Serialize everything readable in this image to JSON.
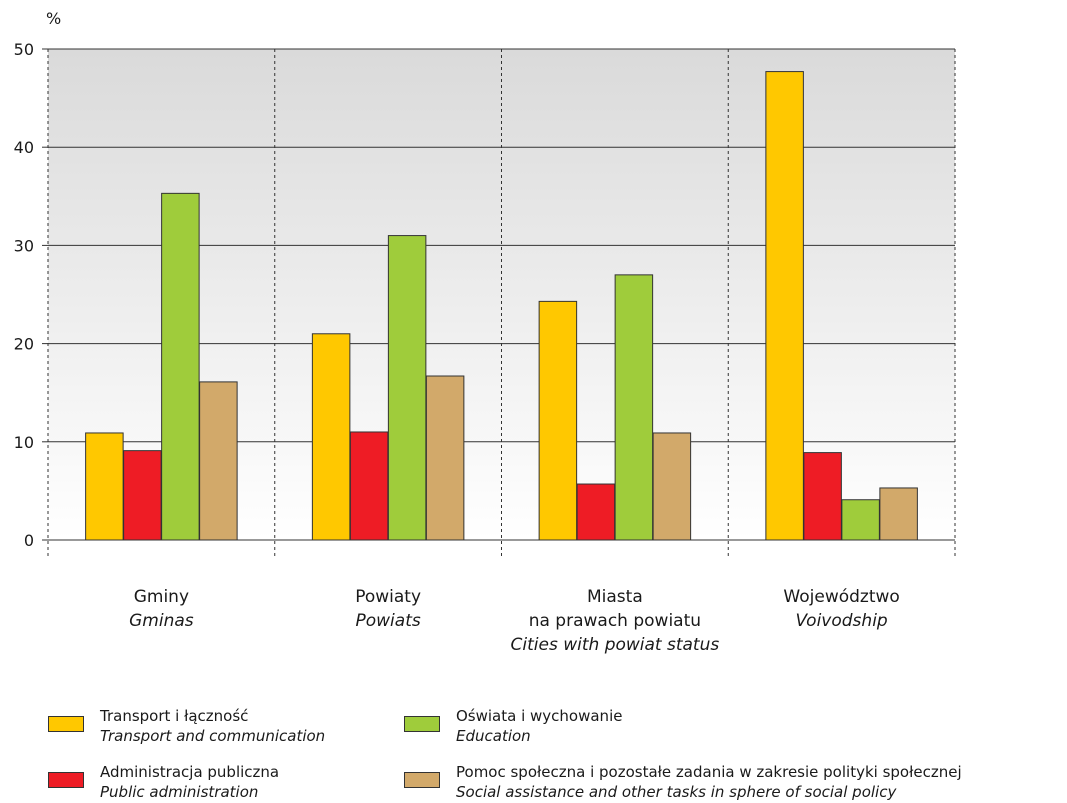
{
  "chart_data": {
    "type": "bar",
    "ylabel": "%",
    "ylim": [
      0,
      50
    ],
    "yticks": [
      0,
      10,
      20,
      30,
      40,
      50
    ],
    "grid": true,
    "legend_position": "bottom",
    "categories": [
      {
        "lines": [
          "Gminy"
        ],
        "italic": [
          "Gminas"
        ]
      },
      {
        "lines": [
          "Powiaty"
        ],
        "italic": [
          "Powiats"
        ]
      },
      {
        "lines": [
          "Miasta",
          "na prawach powiatu"
        ],
        "italic": [
          "Cities with powiat status"
        ]
      },
      {
        "lines": [
          "Województwo"
        ],
        "italic": [
          "Voivodship"
        ]
      }
    ],
    "series": [
      {
        "name": "Transport i łączność",
        "name_en": "Transport and communication",
        "color": "#ffc800",
        "values": [
          10.9,
          21.0,
          24.3,
          47.7
        ]
      },
      {
        "name": "Administracja publiczna",
        "name_en": "Public administration",
        "color": "#ee1c25",
        "values": [
          9.1,
          11.0,
          5.7,
          8.9
        ]
      },
      {
        "name": "Oświata i wychowanie",
        "name_en": "Education",
        "color": "#9fcc3b",
        "values": [
          35.3,
          31.0,
          27.0,
          4.1
        ]
      },
      {
        "name": "Pomoc społeczna i pozostałe zadania w zakresie polityki społecznej",
        "name_en": "Social assistance and other tasks in sphere of social policy",
        "color": "#d2a96a",
        "values": [
          16.1,
          16.7,
          10.9,
          5.3
        ]
      }
    ]
  }
}
